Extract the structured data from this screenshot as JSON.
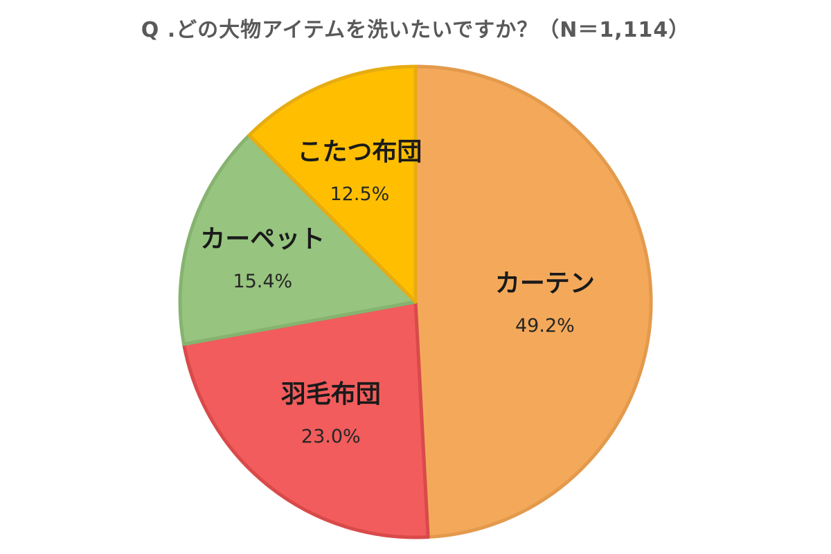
{
  "chart_data": {
    "type": "pie",
    "title": "Q  .どの大物アイテムを洗いたいですか？（N＝1,114）",
    "slices": [
      {
        "label": "カーテン",
        "value": 49.2,
        "value_label": "49.2%",
        "color": "#F4A95A",
        "border": "#E39A4C"
      },
      {
        "label": "羽毛布団",
        "value": 23.0,
        "value_label": "23.0%",
        "color": "#F25C5C",
        "border": "#D94A4A"
      },
      {
        "label": "カーペット",
        "value": 15.4,
        "value_label": "15.4%",
        "color": "#97C47F",
        "border": "#86B36F"
      },
      {
        "label": "こたつ布団",
        "value": 12.5,
        "value_label": "12.5%",
        "color": "#FFBF00",
        "border": "#E6AC12"
      }
    ],
    "start": "12 o'clock",
    "direction": "clockwise",
    "legend": "none"
  }
}
